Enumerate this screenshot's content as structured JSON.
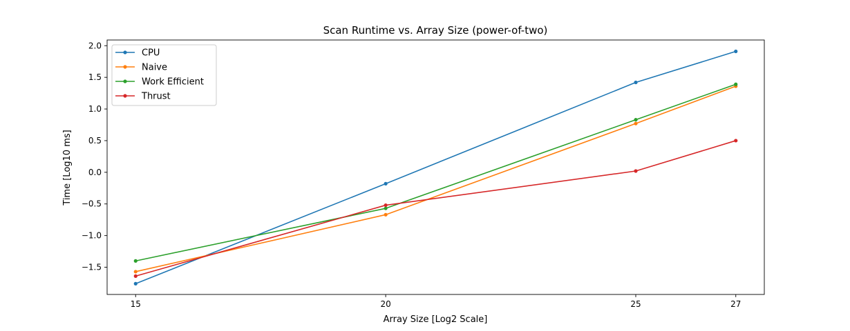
{
  "chart_data": {
    "type": "line",
    "title": "Scan Runtime vs. Array Size (power-of-two)",
    "xlabel": "Array Size [Log2 Scale]",
    "ylabel": "Time [Log10 ms]",
    "x": [
      15,
      20,
      25,
      27
    ],
    "xticks": [
      "15",
      "20",
      "25",
      "27"
    ],
    "yticks": [
      "2.0",
      "1.5",
      "1.0",
      "0.5",
      "0.0",
      "−0.5",
      "−1.0",
      "−1.5"
    ],
    "xlim": [
      14.43,
      27.57
    ],
    "ylim": [
      -1.93,
      2.09
    ],
    "grid": false,
    "legend_position": "top-left",
    "series": [
      {
        "name": "CPU",
        "color": "#1f77b4",
        "values": [
          -1.76,
          -0.18,
          1.42,
          1.91
        ]
      },
      {
        "name": "Naive",
        "color": "#ff7f0e",
        "values": [
          -1.57,
          -0.67,
          0.77,
          1.36
        ]
      },
      {
        "name": "Work Efficient",
        "color": "#2ca02c",
        "values": [
          -1.4,
          -0.57,
          0.83,
          1.39
        ]
      },
      {
        "name": "Thrust",
        "color": "#d62728",
        "values": [
          -1.64,
          -0.52,
          0.02,
          0.5
        ]
      }
    ]
  }
}
